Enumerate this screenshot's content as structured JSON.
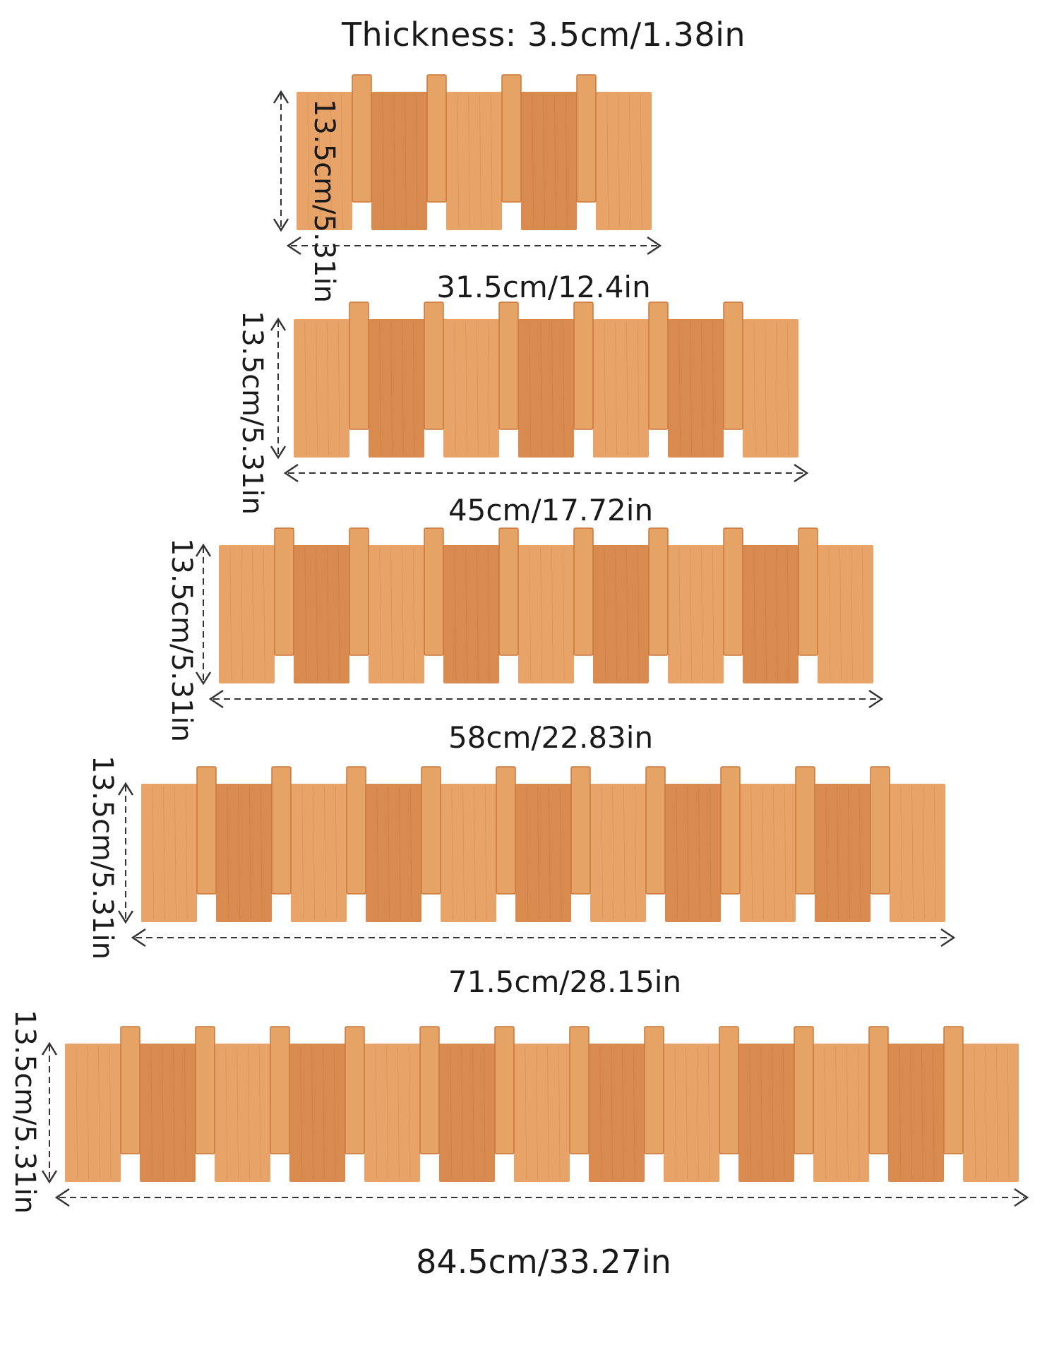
{
  "thickness_label": "Thickness: 3.5cm/1.38in",
  "racks": [
    {
      "hooks": 4,
      "width_label": "31.5cm/12.4in",
      "height_label": "13.5cm/5.31in"
    },
    {
      "hooks": 6,
      "width_label": "45cm/17.72in",
      "height_label": "13.5cm/5.31in"
    },
    {
      "hooks": 8,
      "width_label": "58cm/22.83in",
      "height_label": "13.5cm/5.31in"
    },
    {
      "hooks": 10,
      "width_label": "71.5cm/28.15in",
      "height_label": "13.5cm/5.31in"
    },
    {
      "hooks": 12,
      "width_label": "84.5cm/33.27in",
      "height_label": "13.5cm/5.31in"
    }
  ],
  "colors": {
    "panel": "#d98a4e",
    "panel_light": "#e8a468",
    "peg": "#e6a366",
    "peg_dark": "#c8783c",
    "grain": "#b96a34"
  }
}
